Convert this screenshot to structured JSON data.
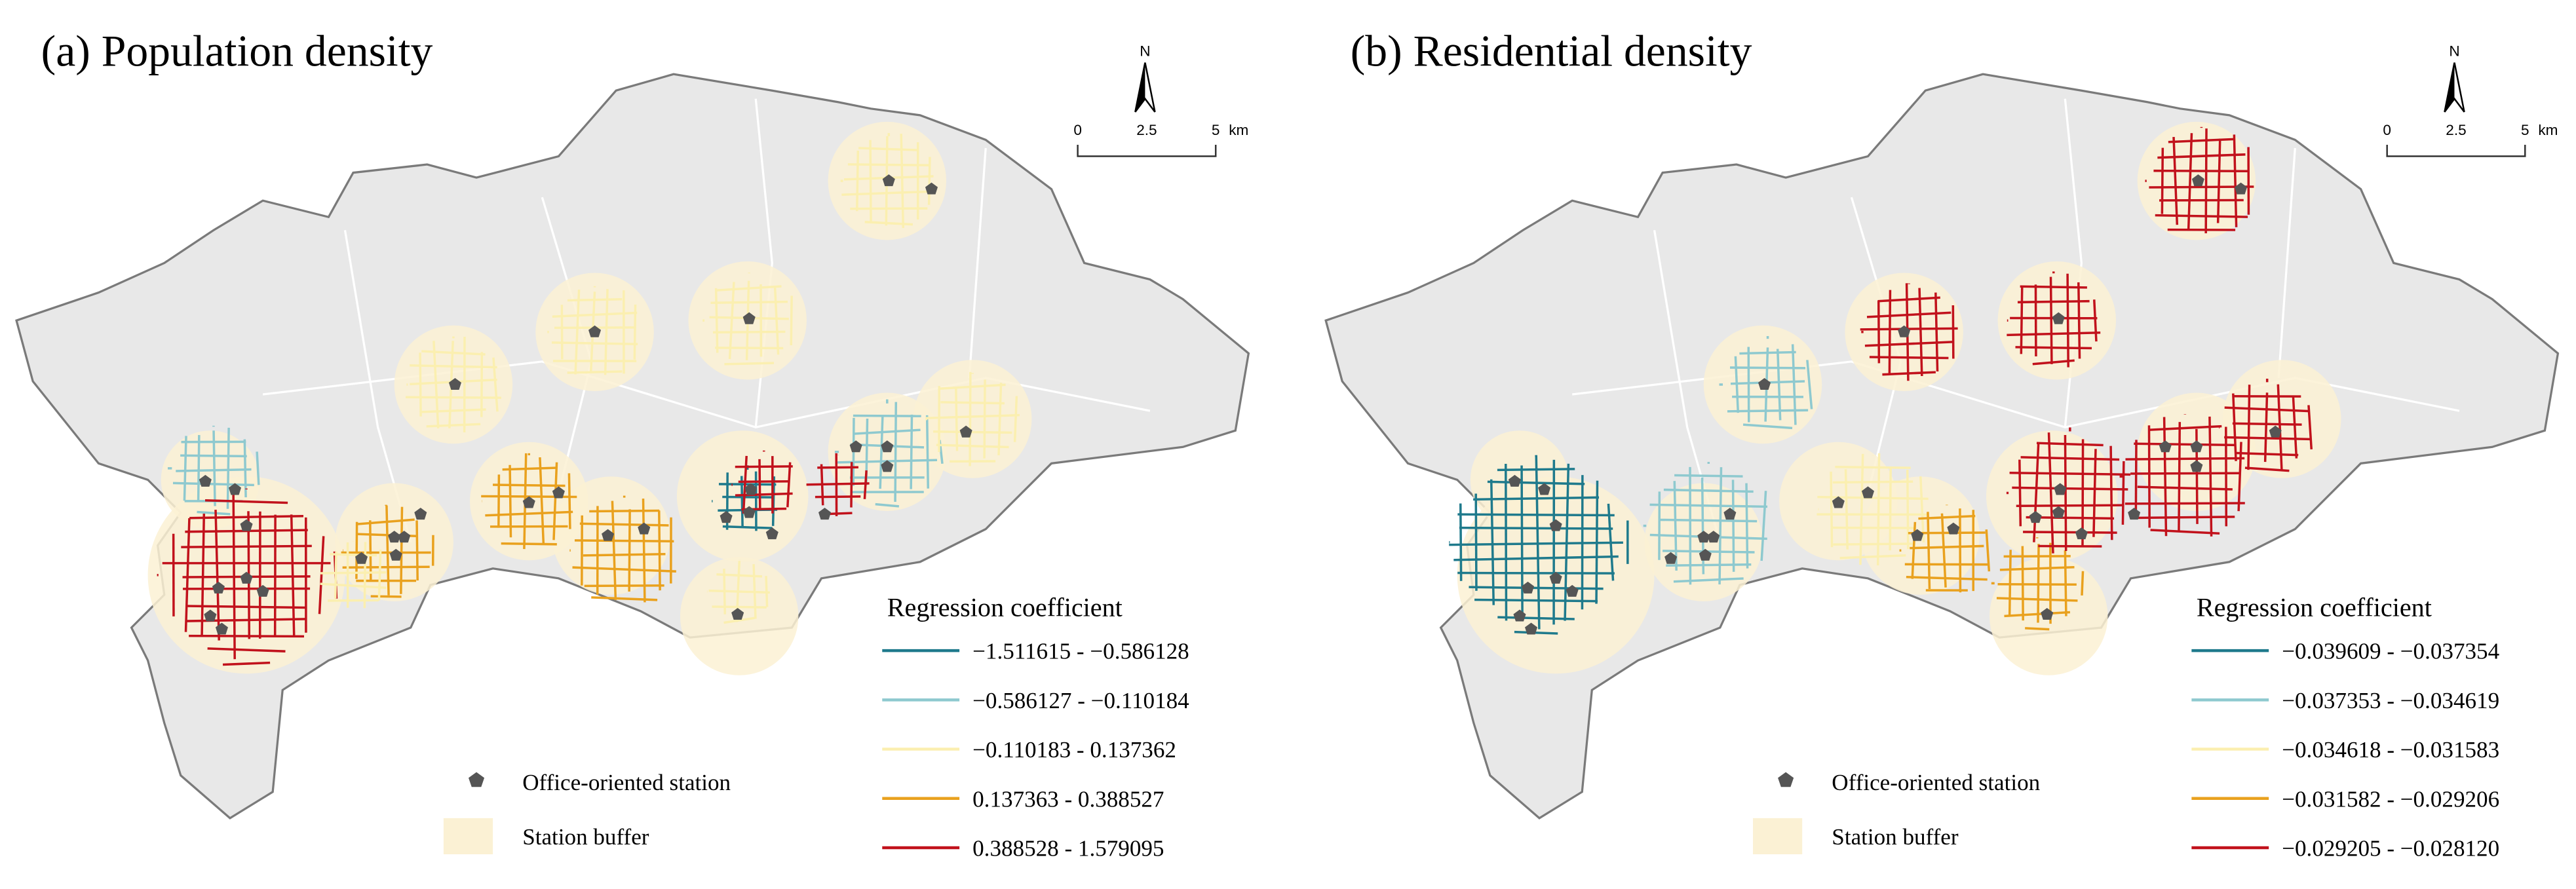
{
  "panels": [
    {
      "title": "(a) Population density",
      "north": "N",
      "scale_bar": {
        "ticks": [
          "0",
          "2.5",
          "5"
        ],
        "unit": "km"
      },
      "legend": {
        "title": "Regression coefficient",
        "items": [
          {
            "label": "−1.511615 - −0.586128",
            "color": "#1f7a8c"
          },
          {
            "label": "−0.586127 - −0.110184",
            "color": "#8ec9cf"
          },
          {
            "label": "−0.110183 - 0.137362",
            "color": "#fbefb0"
          },
          {
            "label": "0.137363 - 0.388527",
            "color": "#e9a11e"
          },
          {
            "label": "0.388528 - 1.579095",
            "color": "#c1121c"
          }
        ]
      },
      "station_legend": "Office-oriented station",
      "buffer_legend": "Station buffer"
    },
    {
      "title": "(b) Residential density",
      "north": "N",
      "scale_bar": {
        "ticks": [
          "0",
          "2.5",
          "5"
        ],
        "unit": "km"
      },
      "legend": {
        "title": "Regression coefficient",
        "items": [
          {
            "label": "−0.039609 - −0.037354",
            "color": "#1f7a8c"
          },
          {
            "label": "−0.037353 - −0.034619",
            "color": "#8ec9cf"
          },
          {
            "label": "−0.034618 - −0.031583",
            "color": "#fbefb0"
          },
          {
            "label": "−0.031582 - −0.029206",
            "color": "#e9a11e"
          },
          {
            "label": "−0.029205 - −0.028120",
            "color": "#c1121c"
          }
        ]
      },
      "station_legend": "Office-oriented station",
      "buffer_legend": "Station buffer"
    }
  ]
}
